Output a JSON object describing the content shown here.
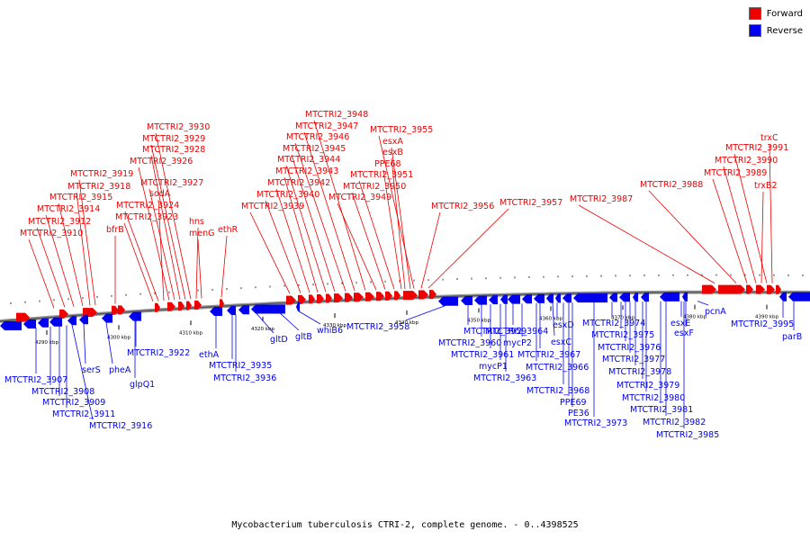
{
  "legend": {
    "forward_label": "Forward",
    "reverse_label": "Reverse",
    "forward_color": "#ee0000",
    "reverse_color": "#0000ee"
  },
  "caption": "Mycobacterium tuberculosis CTRI-2, complete genome. - 0..4398525",
  "ticks": [
    "4290 kbp",
    "4300 kbp",
    "4310 kbp",
    "4320 kbp",
    "4330 kbp",
    "4340 kbp",
    "4350 kbp",
    "4360 kbp",
    "4370 kbp",
    "4380 kbp",
    "4390 kbp"
  ],
  "forward_genes": [
    "MTCTRI2_3910",
    "MTCTRI2_3912",
    "MTCTRI2_3914",
    "MTCTRI2_3915",
    "MTCTRI2_3918",
    "MTCTRI2_3919",
    "bfrB",
    "MTCTRI2_3923",
    "MTCTRI2_3924",
    "sodA",
    "MTCTRI2_3926",
    "MTCTRI2_3927",
    "MTCTRI2_3928",
    "MTCTRI2_3929",
    "MTCTRI2_3930",
    "hns",
    "menG",
    "ethR",
    "MTCTRI2_3939",
    "MTCTRI2_3940",
    "MTCTRI2_3942",
    "MTCTRI2_3943",
    "MTCTRI2_3944",
    "MTCTRI2_3945",
    "MTCTRI2_3946",
    "MTCTRI2_3947",
    "MTCTRI2_3948",
    "MTCTRI2_3949",
    "MTCTRI2_3950",
    "MTCTRI2_3951",
    "PPE68",
    "esxB",
    "esxA",
    "MTCTRI2_3955",
    "MTCTRI2_3956",
    "MTCTRI2_3957",
    "MTCTRI2_3987",
    "MTCTRI2_3988",
    "MTCTRI2_3989",
    "MTCTRI2_3990",
    "trxB2",
    "MTCTRI2_3991",
    "trxC"
  ],
  "reverse_genes": [
    "MTCTRI2_3907",
    "MTCTRI2_3908",
    "MTCTRI2_3909",
    "MTCTRI2_3911",
    "serS",
    "MTCTRI2_3916",
    "pheA",
    "glpQ1",
    "MTCTRI2_3922",
    "ethA",
    "MTCTRI2_3935",
    "MTCTRI2_3936",
    "gltD",
    "gltB",
    "whiB6",
    "MTCTRI2_3958",
    "MTCTRI2_3959",
    "MTCTRI2_3960",
    "MTCTRI2_3961",
    "mycP1",
    "MTCTRI2_3963",
    "MTCTRI2_3964",
    "mycP2",
    "MTCTRI2_3966",
    "MTCTRI2_3967",
    "esxC",
    "esxD",
    "MTCTRI2_3968",
    "PPE69",
    "PE36",
    "MTCTRI2_3973",
    "MTCTRI2_3974",
    "MTCTRI2_3975",
    "MTCTRI2_3976",
    "MTCTRI2_3977",
    "MTCTRI2_3978",
    "MTCTRI2_3979",
    "MTCTRI2_3980",
    "MTCTRI2_3981",
    "MTCTRI2_3982",
    "MTCTRI2_3985",
    "esxE",
    "esxF",
    "pcnA",
    "MTCTRI2_3995",
    "parB"
  ]
}
